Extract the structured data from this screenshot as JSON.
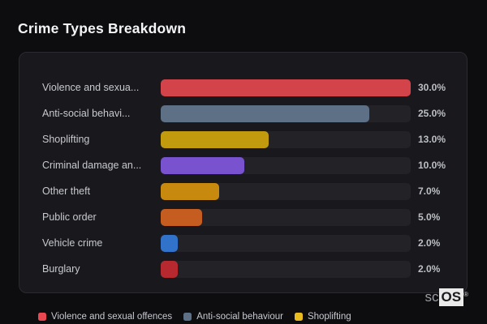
{
  "title": "Crime Types Breakdown",
  "colors": {
    "page_bg": "#0d0d10",
    "panel_bg": "#19191d",
    "panel_border": "#2a2a30",
    "track": "#222227",
    "title_text": "#f4f5f7",
    "label_text": "#c7c9ce",
    "value_text": "#bcbfc4",
    "legend_text": "#c7c9ce"
  },
  "watermark": {
    "prefix": "sc",
    "box": "OS",
    "mark": "®"
  },
  "chart_data": {
    "type": "bar",
    "orientation": "horizontal",
    "title": "Crime Types Breakdown",
    "xlabel": "",
    "ylabel": "",
    "xlim": [
      0,
      30
    ],
    "grid": false,
    "legend_position": "bottom",
    "value_unit": "%",
    "bars": [
      {
        "label": "Violence and sexua...",
        "value": 30.0,
        "value_label": "30.0%",
        "color": "#d2434a"
      },
      {
        "label": "Anti-social behavi...",
        "value": 25.0,
        "value_label": "25.0%",
        "color": "#5d7085"
      },
      {
        "label": "Shoplifting",
        "value": 13.0,
        "value_label": "13.0%",
        "color": "#c19a0e"
      },
      {
        "label": "Criminal damage an...",
        "value": 10.0,
        "value_label": "10.0%",
        "color": "#7852cf"
      },
      {
        "label": "Other theft",
        "value": 7.0,
        "value_label": "7.0%",
        "color": "#c8890f"
      },
      {
        "label": "Public order",
        "value": 5.0,
        "value_label": "5.0%",
        "color": "#c55d20"
      },
      {
        "label": "Vehicle crime",
        "value": 2.0,
        "value_label": "2.0%",
        "color": "#3173cb"
      },
      {
        "label": "Burglary",
        "value": 2.0,
        "value_label": "2.0%",
        "color": "#b7292e"
      }
    ],
    "legend": [
      {
        "label": "Violence and sexual offences",
        "color": "#ea4750"
      },
      {
        "label": "Anti-social behaviour",
        "color": "#5d7085"
      },
      {
        "label": "Shoplifting",
        "color": "#e8bb20"
      }
    ]
  }
}
